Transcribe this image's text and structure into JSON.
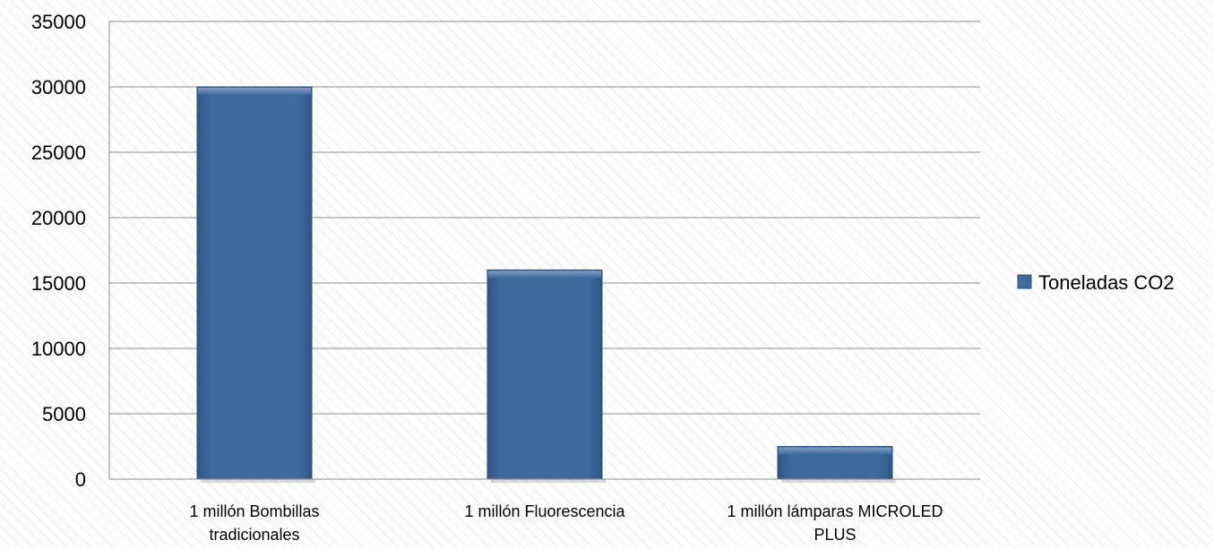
{
  "chart_data": {
    "type": "bar",
    "categories": [
      [
        "1 millón Bombillas",
        "tradicionales"
      ],
      [
        "1 millón Fluorescencia"
      ],
      [
        "1 millón lámparas MICROLED",
        "PLUS"
      ]
    ],
    "series": [
      {
        "name": "Toneladas CO2",
        "values": [
          30000,
          16000,
          2500
        ],
        "color": "#3f6a9e"
      }
    ],
    "yticks": [
      "0",
      "5000",
      "10000",
      "15000",
      "20000",
      "25000",
      "30000",
      "35000"
    ],
    "ylim": [
      0,
      35000
    ],
    "grid": true,
    "legend_position": "right"
  }
}
